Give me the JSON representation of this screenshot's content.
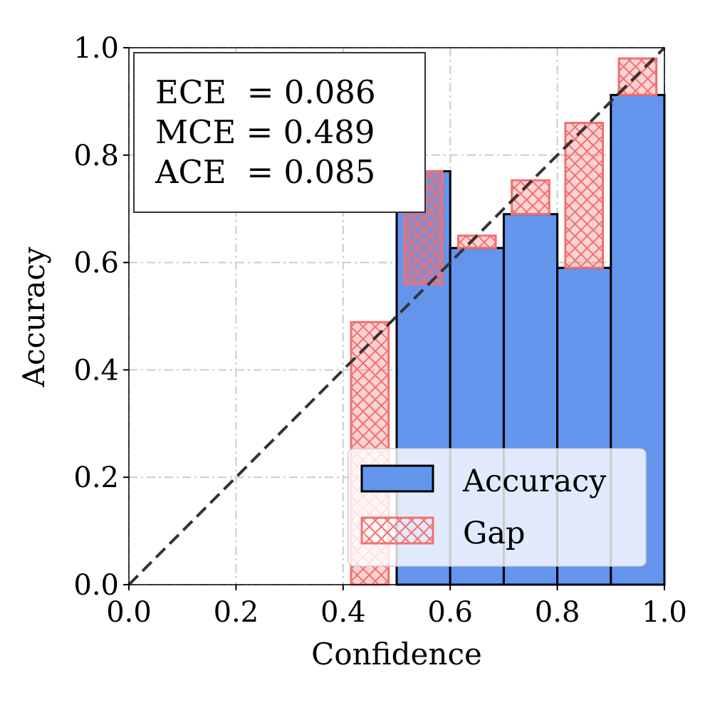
{
  "chart_data": {
    "type": "bar",
    "xlabel": "Confidence",
    "ylabel": "Accuracy",
    "xlim": [
      0.0,
      1.0
    ],
    "ylim": [
      0.0,
      1.0
    ],
    "x_ticks": [
      "0.0",
      "0.2",
      "0.4",
      "0.6",
      "0.8",
      "1.0"
    ],
    "y_ticks": [
      "0.0",
      "0.2",
      "0.4",
      "0.6",
      "0.8",
      "1.0"
    ],
    "grid": true,
    "legend_position": "lower-right",
    "metrics": [
      "ECE  = 0.086",
      "MCE = 0.489",
      "ACE  = 0.085"
    ],
    "series": [
      {
        "name": "Accuracy",
        "color": "#6495ED",
        "bins": [
          {
            "x0": 0.5,
            "x1": 0.6,
            "value": 0.77
          },
          {
            "x0": 0.6,
            "x1": 0.7,
            "value": 0.627
          },
          {
            "x0": 0.7,
            "x1": 0.8,
            "value": 0.69
          },
          {
            "x0": 0.8,
            "x1": 0.9,
            "value": 0.59
          },
          {
            "x0": 0.9,
            "x1": 1.0,
            "value": 0.912
          }
        ]
      },
      {
        "name": "Gap",
        "color": "#F46F6F",
        "bins": [
          {
            "x0": 0.415,
            "x1": 0.485,
            "bottom": 0.0,
            "top": 0.489
          },
          {
            "x0": 0.515,
            "x1": 0.585,
            "bottom": 0.56,
            "top": 0.77
          },
          {
            "x0": 0.615,
            "x1": 0.685,
            "bottom": 0.627,
            "top": 0.65
          },
          {
            "x0": 0.715,
            "x1": 0.785,
            "bottom": 0.69,
            "top": 0.753
          },
          {
            "x0": 0.815,
            "x1": 0.885,
            "bottom": 0.59,
            "top": 0.86
          },
          {
            "x0": 0.915,
            "x1": 0.985,
            "bottom": 0.912,
            "top": 0.98
          }
        ]
      }
    ],
    "reference_line": {
      "from": [
        0,
        0
      ],
      "to": [
        1,
        1
      ],
      "style": "dashed",
      "color": "#333333"
    }
  }
}
